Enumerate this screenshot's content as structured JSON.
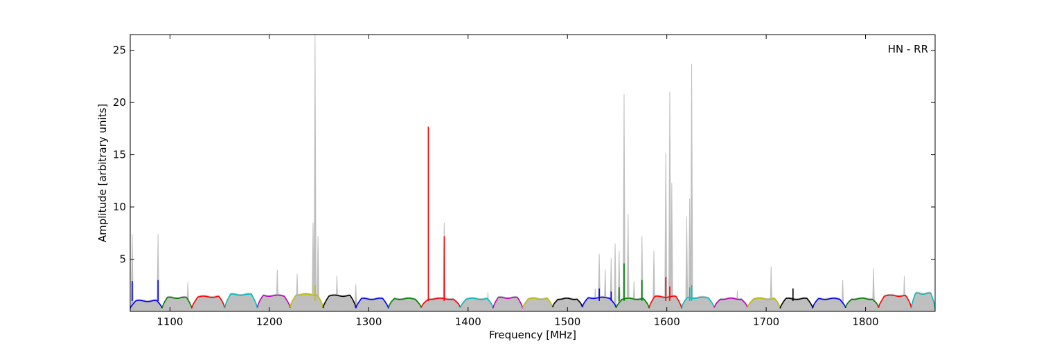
{
  "chart_data": {
    "type": "line",
    "title": "",
    "xlabel": "Frequency [MHz]",
    "ylabel": "Amplitude [arbitrary units]",
    "annotation": "HN - RR",
    "annotation_position": "top-right",
    "xlim": [
      1060,
      1870
    ],
    "ylim": [
      0,
      26.5
    ],
    "xticks": [
      1100,
      1200,
      1300,
      1400,
      1500,
      1600,
      1700,
      1800
    ],
    "yticks": [
      5,
      10,
      15,
      20,
      25
    ],
    "grid": false,
    "background": {
      "color": "#bfbfbf",
      "peaks": [
        {
          "x": 1062,
          "y": 7.4
        },
        {
          "x": 1088,
          "y": 7.4
        },
        {
          "x": 1118,
          "y": 2.8
        },
        {
          "x": 1208,
          "y": 4.0
        },
        {
          "x": 1228,
          "y": 3.6
        },
        {
          "x": 1244,
          "y": 8.5
        },
        {
          "x": 1246,
          "y": 26.5
        },
        {
          "x": 1249,
          "y": 7.2
        },
        {
          "x": 1268,
          "y": 3.4
        },
        {
          "x": 1287,
          "y": 2.6
        },
        {
          "x": 1376,
          "y": 8.5
        },
        {
          "x": 1420,
          "y": 1.8
        },
        {
          "x": 1528,
          "y": 2.2
        },
        {
          "x": 1532,
          "y": 5.5
        },
        {
          "x": 1538,
          "y": 4.0
        },
        {
          "x": 1544,
          "y": 5.1
        },
        {
          "x": 1548,
          "y": 6.5
        },
        {
          "x": 1552,
          "y": 5.8
        },
        {
          "x": 1557,
          "y": 20.8
        },
        {
          "x": 1561,
          "y": 9.3
        },
        {
          "x": 1567,
          "y": 2.9
        },
        {
          "x": 1575,
          "y": 7.2
        },
        {
          "x": 1587,
          "y": 5.8
        },
        {
          "x": 1599,
          "y": 15.2
        },
        {
          "x": 1603,
          "y": 21.0
        },
        {
          "x": 1605,
          "y": 12.3
        },
        {
          "x": 1620,
          "y": 9.1
        },
        {
          "x": 1623,
          "y": 10.8
        },
        {
          "x": 1625,
          "y": 23.7
        },
        {
          "x": 1671,
          "y": 2.0
        },
        {
          "x": 1705,
          "y": 4.3
        },
        {
          "x": 1777,
          "y": 3.0
        },
        {
          "x": 1808,
          "y": 4.1
        },
        {
          "x": 1839,
          "y": 3.4
        }
      ]
    },
    "series": [
      {
        "color": "#0000ff",
        "range": [
          1060,
          1092
        ],
        "level": 1.0
      },
      {
        "color": "#008000",
        "range": [
          1092,
          1122
        ],
        "level": 1.3
      },
      {
        "color": "#ff0000",
        "range": [
          1122,
          1155
        ],
        "level": 1.4
      },
      {
        "color": "#00bfbf",
        "range": [
          1155,
          1188
        ],
        "level": 1.6
      },
      {
        "color": "#bf00bf",
        "range": [
          1188,
          1221
        ],
        "level": 1.5
      },
      {
        "color": "#bfbf00",
        "range": [
          1221,
          1254
        ],
        "level": 1.6
      },
      {
        "color": "#000000",
        "range": [
          1254,
          1287
        ],
        "level": 1.5
      },
      {
        "color": "#0000ff",
        "range": [
          1287,
          1320
        ],
        "level": 1.2
      },
      {
        "color": "#008000",
        "range": [
          1320,
          1353
        ],
        "level": 1.2
      },
      {
        "color": "#ff0000",
        "range": [
          1353,
          1392
        ],
        "level": 1.2
      },
      {
        "color": "#00bfbf",
        "range": [
          1392,
          1425
        ],
        "level": 1.2
      },
      {
        "color": "#bf00bf",
        "range": [
          1425,
          1455
        ],
        "level": 1.3
      },
      {
        "color": "#bfbf00",
        "range": [
          1455,
          1485
        ],
        "level": 1.2
      },
      {
        "color": "#000000",
        "range": [
          1485,
          1515
        ],
        "level": 1.2
      },
      {
        "color": "#0000ff",
        "range": [
          1515,
          1549
        ],
        "level": 1.3
      },
      {
        "color": "#008000",
        "range": [
          1549,
          1582
        ],
        "level": 1.2
      },
      {
        "color": "#ff0000",
        "range": [
          1582,
          1615
        ],
        "level": 1.4
      },
      {
        "color": "#00bfbf",
        "range": [
          1615,
          1648
        ],
        "level": 1.3
      },
      {
        "color": "#bf00bf",
        "range": [
          1648,
          1681
        ],
        "level": 1.2
      },
      {
        "color": "#bfbf00",
        "range": [
          1681,
          1714
        ],
        "level": 1.2
      },
      {
        "color": "#000000",
        "range": [
          1714,
          1747
        ],
        "level": 1.2
      },
      {
        "color": "#0000ff",
        "range": [
          1747,
          1780
        ],
        "level": 1.2
      },
      {
        "color": "#008000",
        "range": [
          1780,
          1813
        ],
        "level": 1.2
      },
      {
        "color": "#ff0000",
        "range": [
          1813,
          1846
        ],
        "level": 1.5
      },
      {
        "color": "#00bfbf",
        "range": [
          1846,
          1870
        ],
        "level": 1.7
      }
    ],
    "spikes": [
      {
        "x": 1062,
        "y": 2.9,
        "color": "#0000ff"
      },
      {
        "x": 1088,
        "y": 3.0,
        "color": "#0000ff"
      },
      {
        "x": 1246,
        "y": 2.5,
        "color": "#bfbf00"
      },
      {
        "x": 1360,
        "y": 17.7,
        "color": "#ff0000"
      },
      {
        "x": 1376,
        "y": 7.2,
        "color": "#ff0000"
      },
      {
        "x": 1532,
        "y": 2.2,
        "color": "#0000ff"
      },
      {
        "x": 1544,
        "y": 1.9,
        "color": "#0000ff"
      },
      {
        "x": 1552,
        "y": 2.3,
        "color": "#008000"
      },
      {
        "x": 1557,
        "y": 4.6,
        "color": "#008000"
      },
      {
        "x": 1575,
        "y": 3.0,
        "color": "#008000"
      },
      {
        "x": 1599,
        "y": 3.3,
        "color": "#ff0000"
      },
      {
        "x": 1603,
        "y": 2.4,
        "color": "#ff0000"
      },
      {
        "x": 1623,
        "y": 2.3,
        "color": "#00bfbf"
      },
      {
        "x": 1625,
        "y": 2.5,
        "color": "#00bfbf"
      },
      {
        "x": 1727,
        "y": 2.2,
        "color": "#000000"
      }
    ]
  }
}
